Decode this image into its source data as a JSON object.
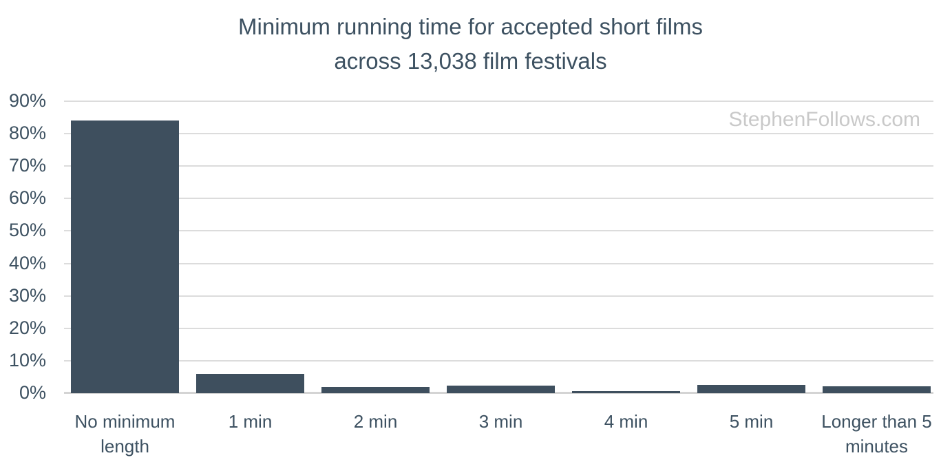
{
  "title": {
    "line1": "Minimum running time for accepted short films",
    "line2": "across 13,038 film festivals"
  },
  "watermark": {
    "text": "StephenFollows.com"
  },
  "colors": {
    "bar": "#3e4f5e",
    "text": "#3d5161",
    "gridline": "#dcdcdc",
    "baseline": "#d4d4d4",
    "watermark": "#c9c9c9",
    "background": "#ffffff"
  },
  "chart_data": {
    "type": "bar",
    "title": "Minimum running time for accepted short films across 13,038 film festivals",
    "categories": [
      "No minimum length",
      "1 min",
      "2 min",
      "3 min",
      "4 min",
      "5 min",
      "Longer than 5 minutes"
    ],
    "categories_display": [
      [
        "No minimum",
        "length"
      ],
      [
        "1 min"
      ],
      [
        "2 min"
      ],
      [
        "3 min"
      ],
      [
        "4 min"
      ],
      [
        "5 min"
      ],
      [
        "Longer than 5",
        "minutes"
      ]
    ],
    "values": [
      84,
      6,
      2,
      2.4,
      0.6,
      2.6,
      2.1
    ],
    "unit": "%",
    "xlabel": "",
    "ylabel": "",
    "ylim": [
      0,
      90
    ],
    "y_tick_step": 10,
    "y_tick_labels": [
      "0%",
      "10%",
      "20%",
      "30%",
      "40%",
      "50%",
      "60%",
      "70%",
      "80%",
      "90%"
    ],
    "grid": "horizontal",
    "legend": "none",
    "bar_color": "#3e4f5e"
  }
}
